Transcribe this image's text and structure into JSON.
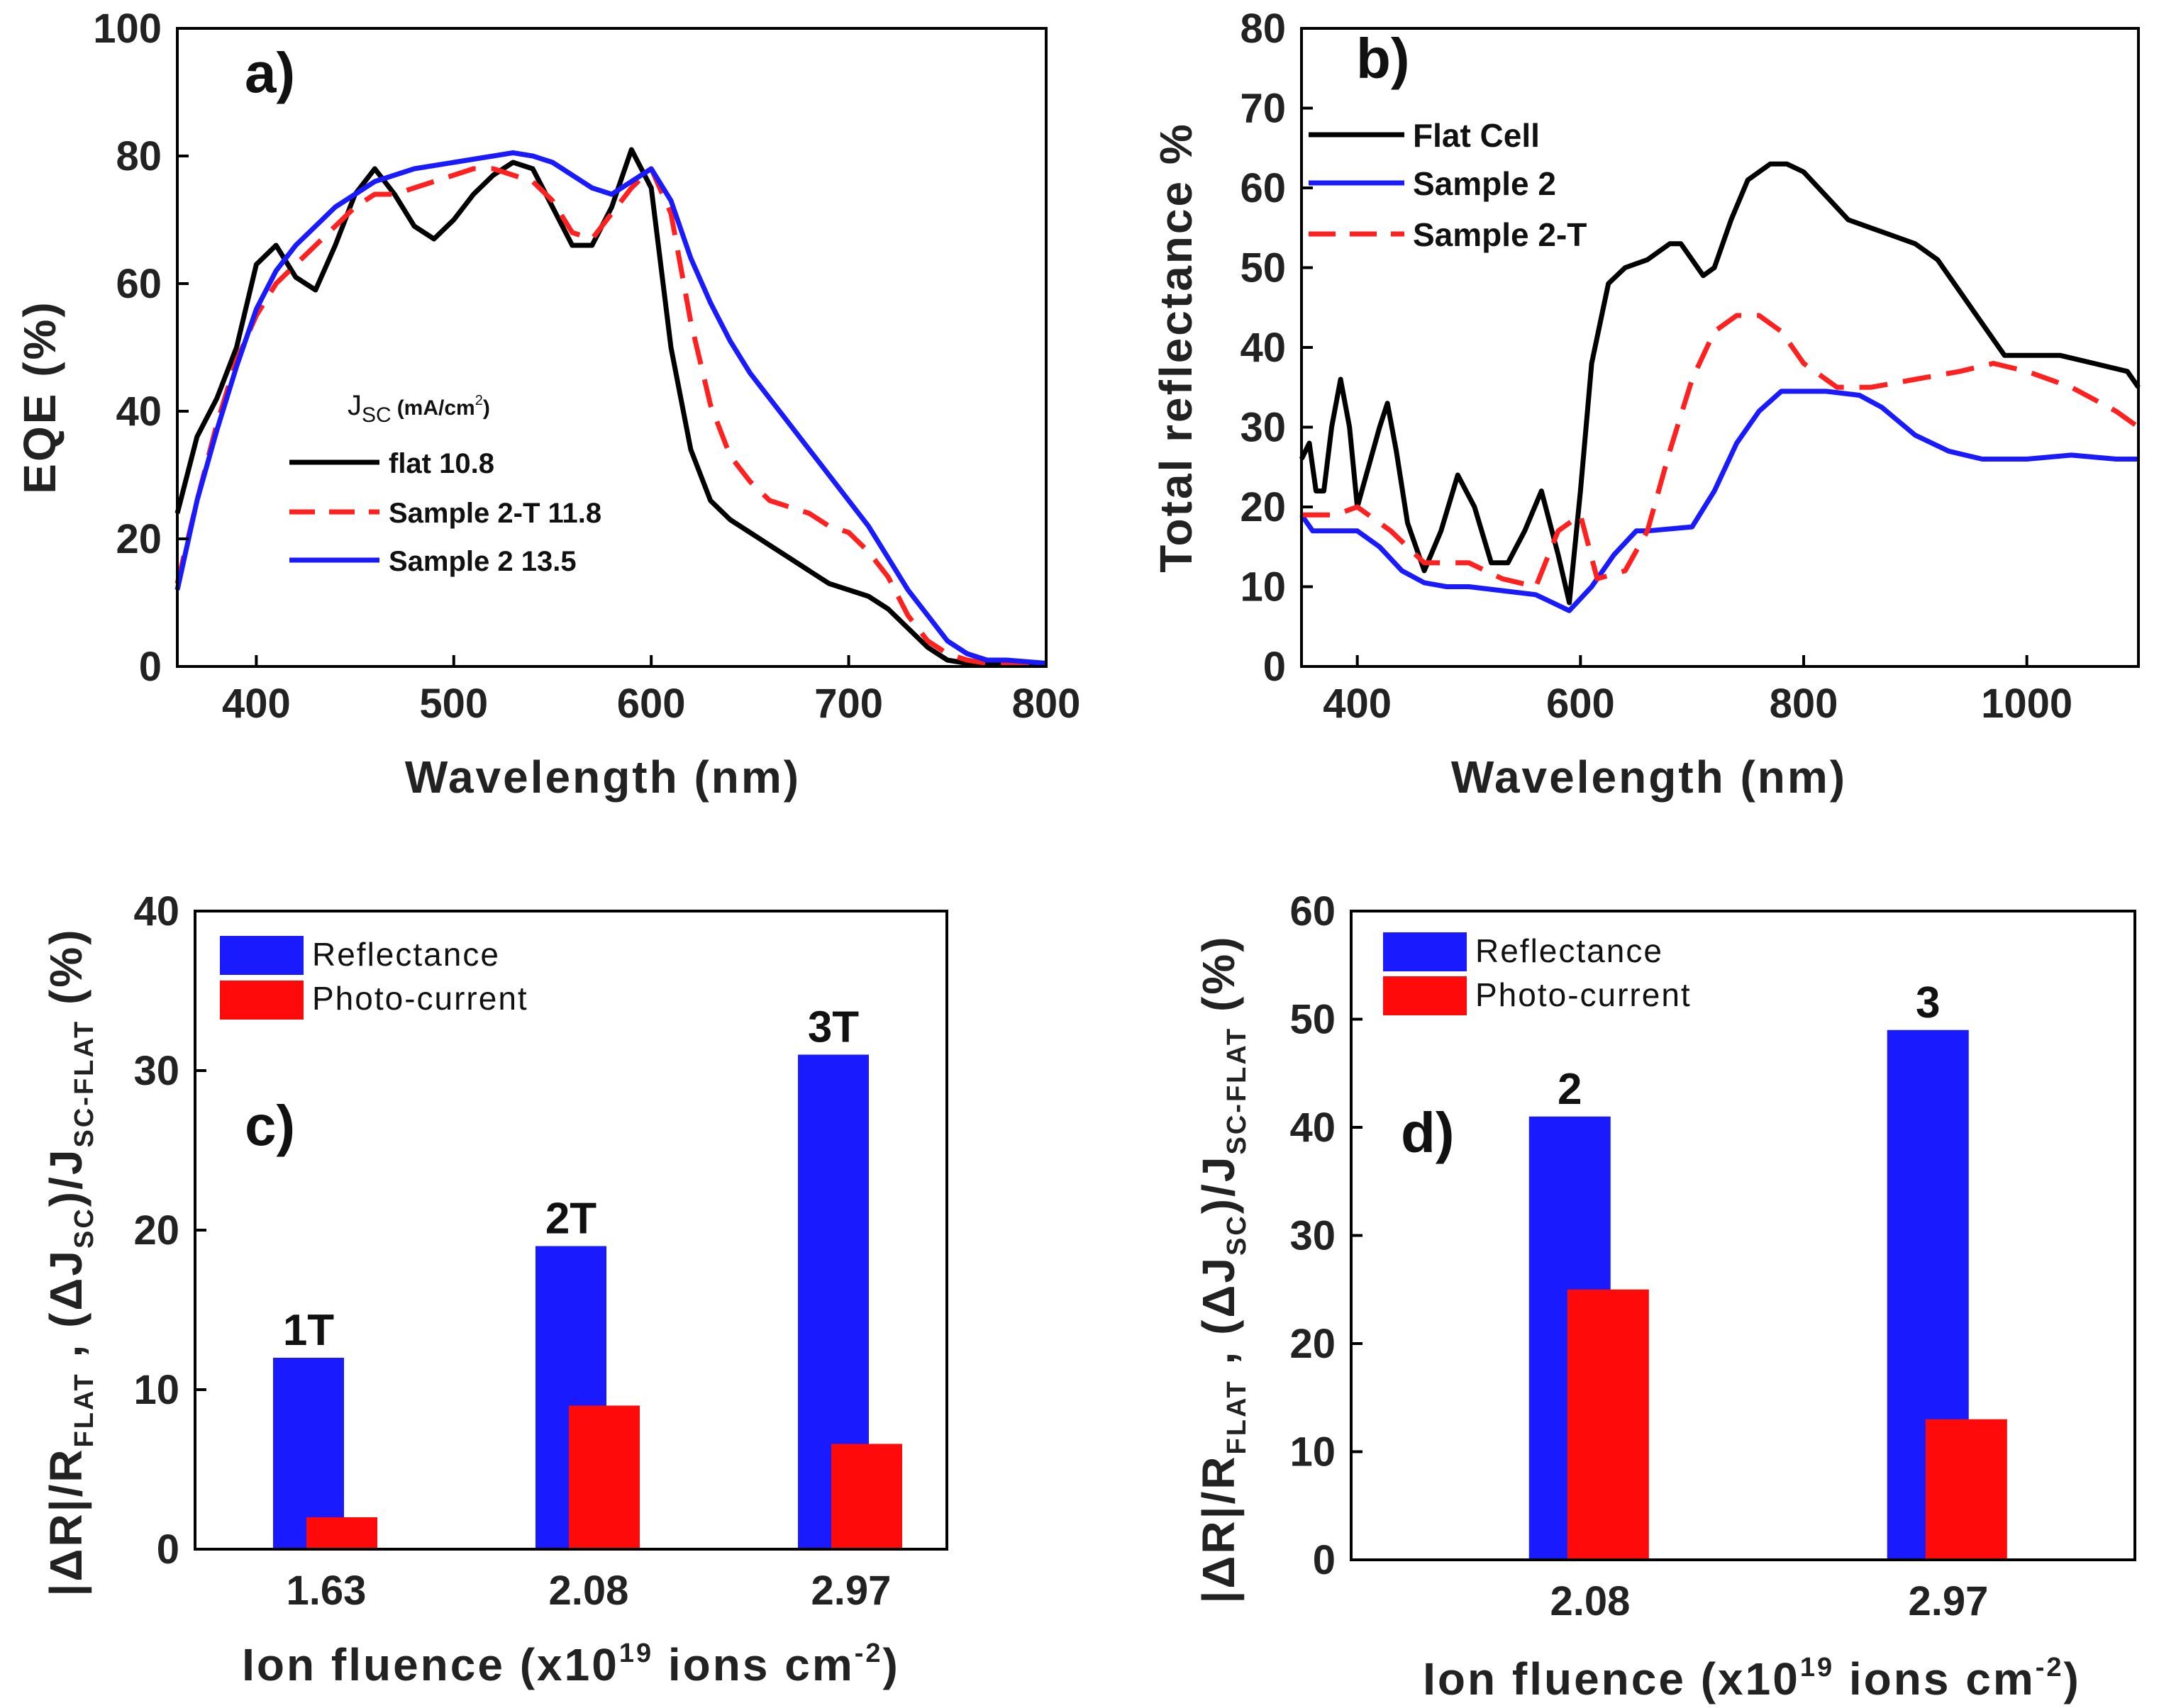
{
  "chart_data": [
    {
      "id": "a",
      "type": "line",
      "panel_label": "a)",
      "xlabel": "Wavelength (nm)",
      "ylabel": "EQE (%)",
      "xlim": [
        360,
        800
      ],
      "ylim": [
        0,
        100
      ],
      "xticks": [
        400,
        500,
        600,
        700,
        800
      ],
      "yticks": [
        0,
        20,
        40,
        60,
        80,
        100
      ],
      "legend_title": "J",
      "legend_title_sub": "SC",
      "legend_title_unit": "(mA/cm",
      "legend_title_sup": "2",
      "legend_title_close": ")",
      "series": [
        {
          "name": "flat 10.8",
          "color": "#000000",
          "dash": "solid",
          "x": [
            360,
            370,
            380,
            390,
            400,
            410,
            420,
            430,
            440,
            450,
            460,
            470,
            480,
            490,
            500,
            510,
            520,
            530,
            540,
            550,
            560,
            570,
            580,
            590,
            600,
            610,
            620,
            630,
            640,
            650,
            660,
            670,
            680,
            690,
            700,
            710,
            720,
            730,
            740,
            750,
            760,
            770,
            780,
            800
          ],
          "y": [
            24,
            36,
            42,
            50,
            63,
            66,
            61,
            59,
            66,
            74,
            78,
            74,
            69,
            67,
            70,
            74,
            77,
            79,
            78,
            72,
            66,
            66,
            72,
            81,
            75,
            50,
            34,
            26,
            23,
            21,
            19,
            17,
            15,
            13,
            12,
            11,
            9,
            6,
            3,
            1,
            0.5,
            0.5,
            0.5,
            0.5
          ]
        },
        {
          "name": "Sample 2-T  11.8",
          "color": "#ff2020",
          "dash": "dashed",
          "x": [
            360,
            370,
            380,
            390,
            400,
            410,
            420,
            430,
            440,
            450,
            460,
            470,
            480,
            490,
            500,
            510,
            520,
            530,
            540,
            550,
            560,
            570,
            580,
            590,
            600,
            610,
            620,
            630,
            640,
            650,
            660,
            670,
            680,
            690,
            700,
            710,
            720,
            730,
            740,
            750,
            760,
            770,
            780,
            800
          ],
          "y": [
            13,
            26,
            38,
            48,
            55,
            60,
            63,
            66,
            69,
            72,
            74,
            74,
            75,
            76,
            77,
            78,
            78,
            77,
            76,
            73,
            68,
            67,
            71,
            75,
            78,
            71,
            54,
            41,
            33,
            29,
            26,
            25,
            24,
            22,
            21,
            18,
            14,
            8,
            4,
            2,
            1,
            0.5,
            0.5,
            0.5
          ]
        },
        {
          "name": "Sample 2  13.5",
          "color": "#1a1aff",
          "dash": "solid",
          "x": [
            360,
            370,
            380,
            390,
            400,
            410,
            420,
            430,
            440,
            450,
            460,
            470,
            480,
            490,
            500,
            510,
            520,
            530,
            540,
            550,
            560,
            570,
            580,
            590,
            600,
            610,
            620,
            630,
            640,
            650,
            660,
            670,
            680,
            690,
            700,
            710,
            720,
            730,
            740,
            750,
            760,
            770,
            780,
            800
          ],
          "y": [
            12,
            26,
            37,
            47,
            56,
            62,
            66,
            69,
            72,
            74,
            76,
            77,
            78,
            78.5,
            79,
            79.5,
            80,
            80.5,
            80,
            79,
            77,
            75,
            74,
            76,
            78,
            73,
            64,
            57,
            51,
            46,
            42,
            38,
            34,
            30,
            26,
            22,
            17,
            12,
            8,
            4,
            2,
            1,
            1,
            0.5
          ]
        }
      ]
    },
    {
      "id": "b",
      "type": "line",
      "panel_label": "b)",
      "xlabel": "Wavelength (nm)",
      "ylabel": "Total reflectance %",
      "xlim": [
        350,
        1100
      ],
      "ylim": [
        0,
        80
      ],
      "xticks": [
        400,
        600,
        800,
        1000
      ],
      "yticks": [
        0,
        10,
        20,
        30,
        40,
        50,
        60,
        70,
        80
      ],
      "series": [
        {
          "name": "Flat Cell",
          "color": "#000000",
          "dash": "solid",
          "x": [
            350,
            357,
            363,
            370,
            377,
            385,
            393,
            400,
            410,
            420,
            427,
            435,
            445,
            460,
            475,
            490,
            505,
            520,
            535,
            550,
            565,
            580,
            590,
            600,
            610,
            625,
            640,
            660,
            680,
            690,
            700,
            710,
            720,
            735,
            750,
            770,
            785,
            800,
            820,
            840,
            860,
            880,
            900,
            920,
            940,
            960,
            980,
            1000,
            1030,
            1060,
            1090,
            1100
          ],
          "y": [
            26,
            28,
            22,
            22,
            30,
            36,
            30,
            20,
            25,
            30,
            33,
            27,
            18,
            12,
            17,
            24,
            20,
            13,
            13,
            17,
            22,
            14,
            8,
            22,
            38,
            48,
            50,
            51,
            53,
            53,
            51,
            49,
            50,
            56,
            61,
            63,
            63,
            62,
            59,
            56,
            55,
            54,
            53,
            51,
            47,
            43,
            39,
            39,
            39,
            38,
            37,
            35
          ]
        },
        {
          "name": "Sample 2",
          "color": "#1a1aff",
          "dash": "solid",
          "x": [
            350,
            360,
            380,
            400,
            420,
            440,
            460,
            480,
            500,
            530,
            560,
            575,
            590,
            610,
            630,
            650,
            660,
            700,
            720,
            740,
            760,
            780,
            800,
            820,
            850,
            870,
            900,
            930,
            960,
            1000,
            1040,
            1080,
            1100
          ],
          "y": [
            19,
            17,
            17,
            17,
            15,
            12,
            10.5,
            10,
            10,
            9.5,
            9,
            8,
            7,
            10,
            14,
            17,
            17,
            17.5,
            22,
            28,
            32,
            34.5,
            34.5,
            34.5,
            34,
            32.5,
            29,
            27,
            26,
            26,
            26.5,
            26,
            26
          ]
        },
        {
          "name": "Sample 2-T",
          "color": "#ff2020",
          "dash": "dashed",
          "x": [
            350,
            380,
            400,
            430,
            460,
            500,
            530,
            560,
            580,
            600,
            615,
            640,
            660,
            680,
            700,
            720,
            740,
            760,
            780,
            800,
            830,
            860,
            900,
            940,
            970,
            1000,
            1040,
            1080,
            1100
          ],
          "y": [
            19,
            19,
            20,
            17,
            13,
            13,
            11,
            10,
            17,
            19,
            11,
            12,
            17,
            27,
            36,
            42,
            44,
            44,
            42,
            38,
            35,
            35,
            36,
            37,
            38,
            37,
            35,
            32,
            30
          ]
        }
      ]
    },
    {
      "id": "c",
      "type": "bar",
      "panel_label": "c)",
      "xlabel_main": "Ion fluence (x10",
      "xlabel_sup": "19",
      "xlabel_mid": " ions cm",
      "xlabel_sup2": "-2",
      "xlabel_end": ")",
      "ylabel_parts": [
        "|ΔR|/R",
        "FLAT",
        " ,  (ΔJ",
        "SC",
        ")/J",
        "SC-FLAT",
        "    (%)"
      ],
      "categories": [
        "1.63",
        "2.08",
        "2.97"
      ],
      "bar_labels": [
        "1T",
        "2T",
        "3T"
      ],
      "ylim": [
        0,
        40
      ],
      "yticks": [
        0,
        10,
        20,
        30,
        40
      ],
      "series": [
        {
          "name": "Reflectance",
          "color": "#1a1aff",
          "values": [
            12,
            19,
            31
          ]
        },
        {
          "name": "Photo-current",
          "color": "#ff0a0a",
          "values": [
            2,
            9,
            6.6
          ]
        }
      ]
    },
    {
      "id": "d",
      "type": "bar",
      "panel_label": "d)",
      "xlabel_main": "Ion fluence (x10",
      "xlabel_sup": "19",
      "xlabel_mid": " ions cm",
      "xlabel_sup2": "-2",
      "xlabel_end": ")",
      "ylabel_parts": [
        "|ΔR|/R",
        "FLAT",
        " , (ΔJ",
        "SC",
        ")/J",
        "SC-FLAT",
        "    (%)"
      ],
      "categories": [
        "2.08",
        "2.97"
      ],
      "bar_labels": [
        "2",
        "3"
      ],
      "ylim": [
        0,
        60
      ],
      "yticks": [
        0,
        10,
        20,
        30,
        40,
        50,
        60
      ],
      "series": [
        {
          "name": "Reflectance",
          "color": "#1a1aff",
          "values": [
            41,
            49
          ]
        },
        {
          "name": "Photo-current",
          "color": "#ff0a0a",
          "values": [
            25,
            13
          ]
        }
      ]
    }
  ]
}
